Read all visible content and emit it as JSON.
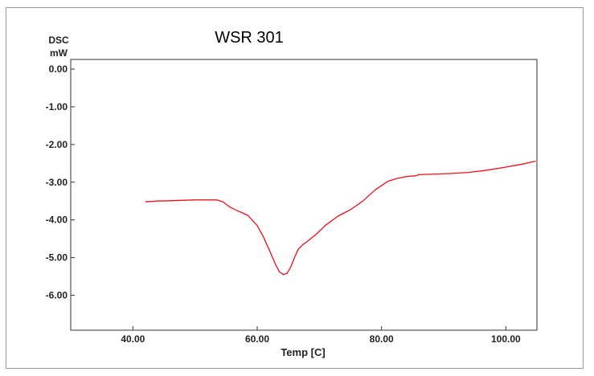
{
  "chart_data": {
    "type": "line",
    "title": "WSR 301",
    "ylabel_line1": "DSC",
    "ylabel_line2": "mW",
    "xlabel": "Temp [C]",
    "xlim": [
      30,
      105
    ],
    "ylim": [
      -6.5,
      0.0
    ],
    "xticks": [
      40,
      60,
      80,
      100
    ],
    "xtick_labels": [
      "40.00",
      "60.00",
      "80.00",
      "100.00"
    ],
    "yticks": [
      0,
      -1,
      -2,
      -3,
      -4,
      -5,
      -6
    ],
    "ytick_labels": [
      "0.00",
      "-1.00",
      "-2.00",
      "-3.00",
      "-4.00",
      "-5.00",
      "-6.00"
    ],
    "grid": false,
    "line_color": "#e8101a",
    "series": [
      {
        "x": [
          42.0,
          44.0,
          46.0,
          48.0,
          50.0,
          52.0,
          53.5,
          54.5,
          55.5,
          57.0,
          58.5,
          60.0,
          61.0,
          62.0,
          63.0,
          63.6,
          64.2,
          64.8,
          65.4,
          66.0,
          66.6,
          67.3,
          68.0,
          69.5,
          71.0,
          73.0,
          75.0,
          77.0,
          79.0,
          81.0,
          82.5,
          84.0,
          85.5,
          86.0,
          88.0,
          91.0,
          94.0,
          97.0,
          100.0,
          103.0,
          104.8
        ],
        "y": [
          -3.52,
          -3.5,
          -3.49,
          -3.48,
          -3.47,
          -3.47,
          -3.47,
          -3.52,
          -3.65,
          -3.77,
          -3.88,
          -4.15,
          -4.45,
          -4.82,
          -5.2,
          -5.38,
          -5.45,
          -5.42,
          -5.25,
          -5.0,
          -4.78,
          -4.66,
          -4.58,
          -4.38,
          -4.14,
          -3.9,
          -3.73,
          -3.5,
          -3.2,
          -2.98,
          -2.9,
          -2.85,
          -2.83,
          -2.8,
          -2.79,
          -2.77,
          -2.74,
          -2.68,
          -2.6,
          -2.51,
          -2.44
        ]
      }
    ]
  }
}
